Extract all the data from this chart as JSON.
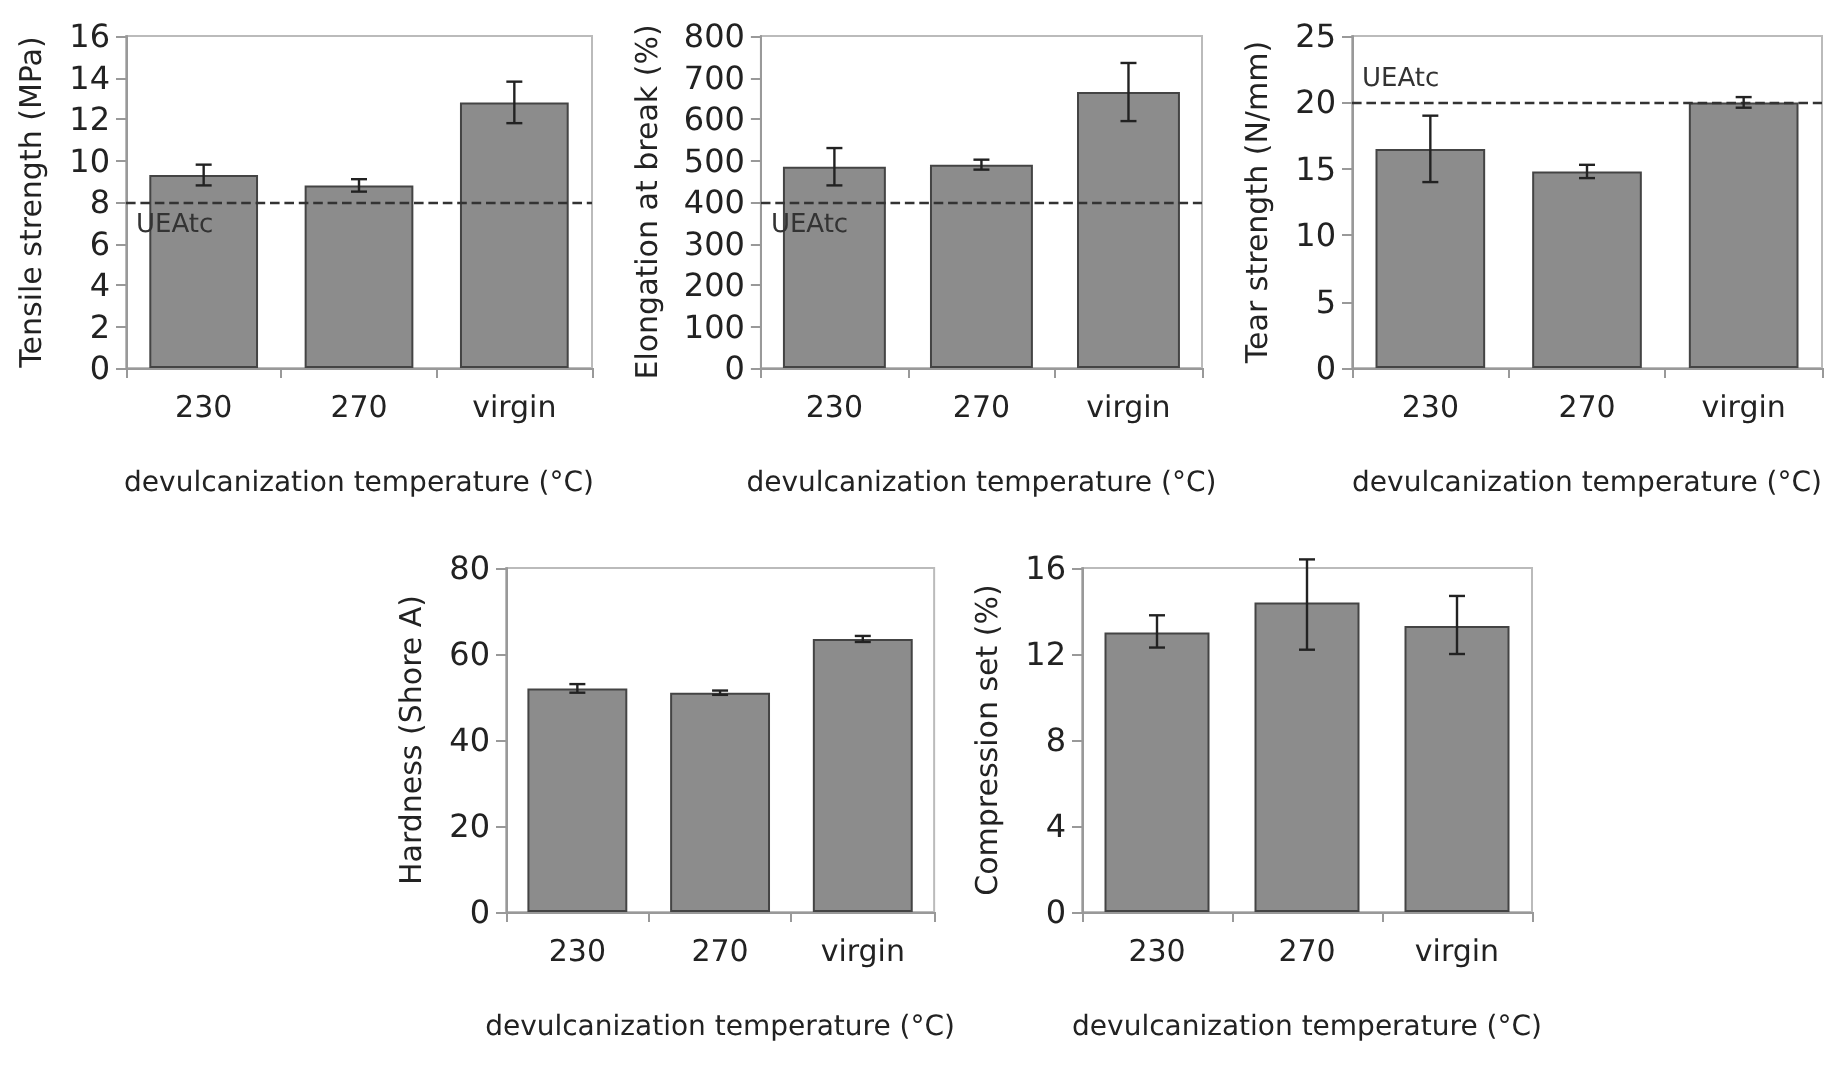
{
  "chart_data": [
    {
      "type": "bar",
      "categories": [
        "230",
        "270",
        "virgin"
      ],
      "xlabel": "devulcanization temperature (°C)",
      "ylabel": "Tensile strength (MPa)",
      "values": [
        9.3,
        8.8,
        12.8
      ],
      "errors": [
        0.5,
        0.3,
        1.0
      ],
      "color": "#8c8c8c",
      "ylim": [
        0,
        16
      ],
      "yticks": [
        0,
        2,
        4,
        6,
        8,
        10,
        12,
        14,
        16
      ],
      "grid": false,
      "ref_lines": [
        {
          "axis": "y",
          "value": 8,
          "label": "UEAtc",
          "line_style": "dashed",
          "color": "#333333"
        }
      ]
    },
    {
      "type": "bar",
      "categories": [
        "230",
        "270",
        "virgin"
      ],
      "xlabel": "devulcanization temperature (°C)",
      "ylabel": "Elongation at break (%)",
      "values": [
        485,
        490,
        665
      ],
      "errors": [
        45,
        12,
        70
      ],
      "color": "#8c8c8c",
      "ylim": [
        0,
        800
      ],
      "yticks": [
        0,
        100,
        200,
        300,
        400,
        500,
        600,
        700,
        800
      ],
      "grid": false,
      "ref_lines": [
        {
          "axis": "y",
          "value": 400,
          "label": "UEAtc",
          "line_style": "dashed",
          "color": "#333333"
        }
      ]
    },
    {
      "type": "bar",
      "categories": [
        "230",
        "270",
        "virgin"
      ],
      "xlabel": "devulcanization temperature (°C)",
      "ylabel": "Tear strength (N/mm)",
      "values": [
        16.5,
        14.8,
        20
      ],
      "errors": [
        [
          14,
          19
        ],
        0.5,
        0.4
      ],
      "color": "#8c8c8c",
      "ylim": [
        0,
        25
      ],
      "yticks": [
        0,
        5,
        10,
        15,
        20,
        25
      ],
      "grid": false,
      "ref_lines": [
        {
          "axis": "y",
          "value": 20,
          "label": "UEAtc",
          "line_style": "dashed",
          "color": "#333333"
        }
      ]
    },
    {
      "type": "bar",
      "categories": [
        "230",
        "270",
        "virgin"
      ],
      "xlabel": "devulcanization temperature (°C)",
      "ylabel": "Hardness (Shore A)",
      "values": [
        52,
        51,
        63.5
      ],
      "errors": [
        1,
        0.5,
        0.7
      ],
      "color": "#8c8c8c",
      "ylim": [
        0,
        80
      ],
      "yticks": [
        0,
        20,
        40,
        60,
        80
      ],
      "grid": false
    },
    {
      "type": "bar",
      "categories": [
        "230",
        "270",
        "virgin"
      ],
      "xlabel": "devulcanization temperature (°C)",
      "ylabel": "Compression set (%)",
      "values": [
        13,
        14.4,
        13.3
      ],
      "errors": [
        [
          12.3,
          13.8
        ],
        [
          12.2,
          16.4
        ],
        [
          12,
          14.7
        ]
      ],
      "color": "#8c8c8c",
      "ylim": [
        0,
        16
      ],
      "yticks": [
        0,
        4,
        8,
        12,
        16
      ],
      "grid": false
    }
  ]
}
